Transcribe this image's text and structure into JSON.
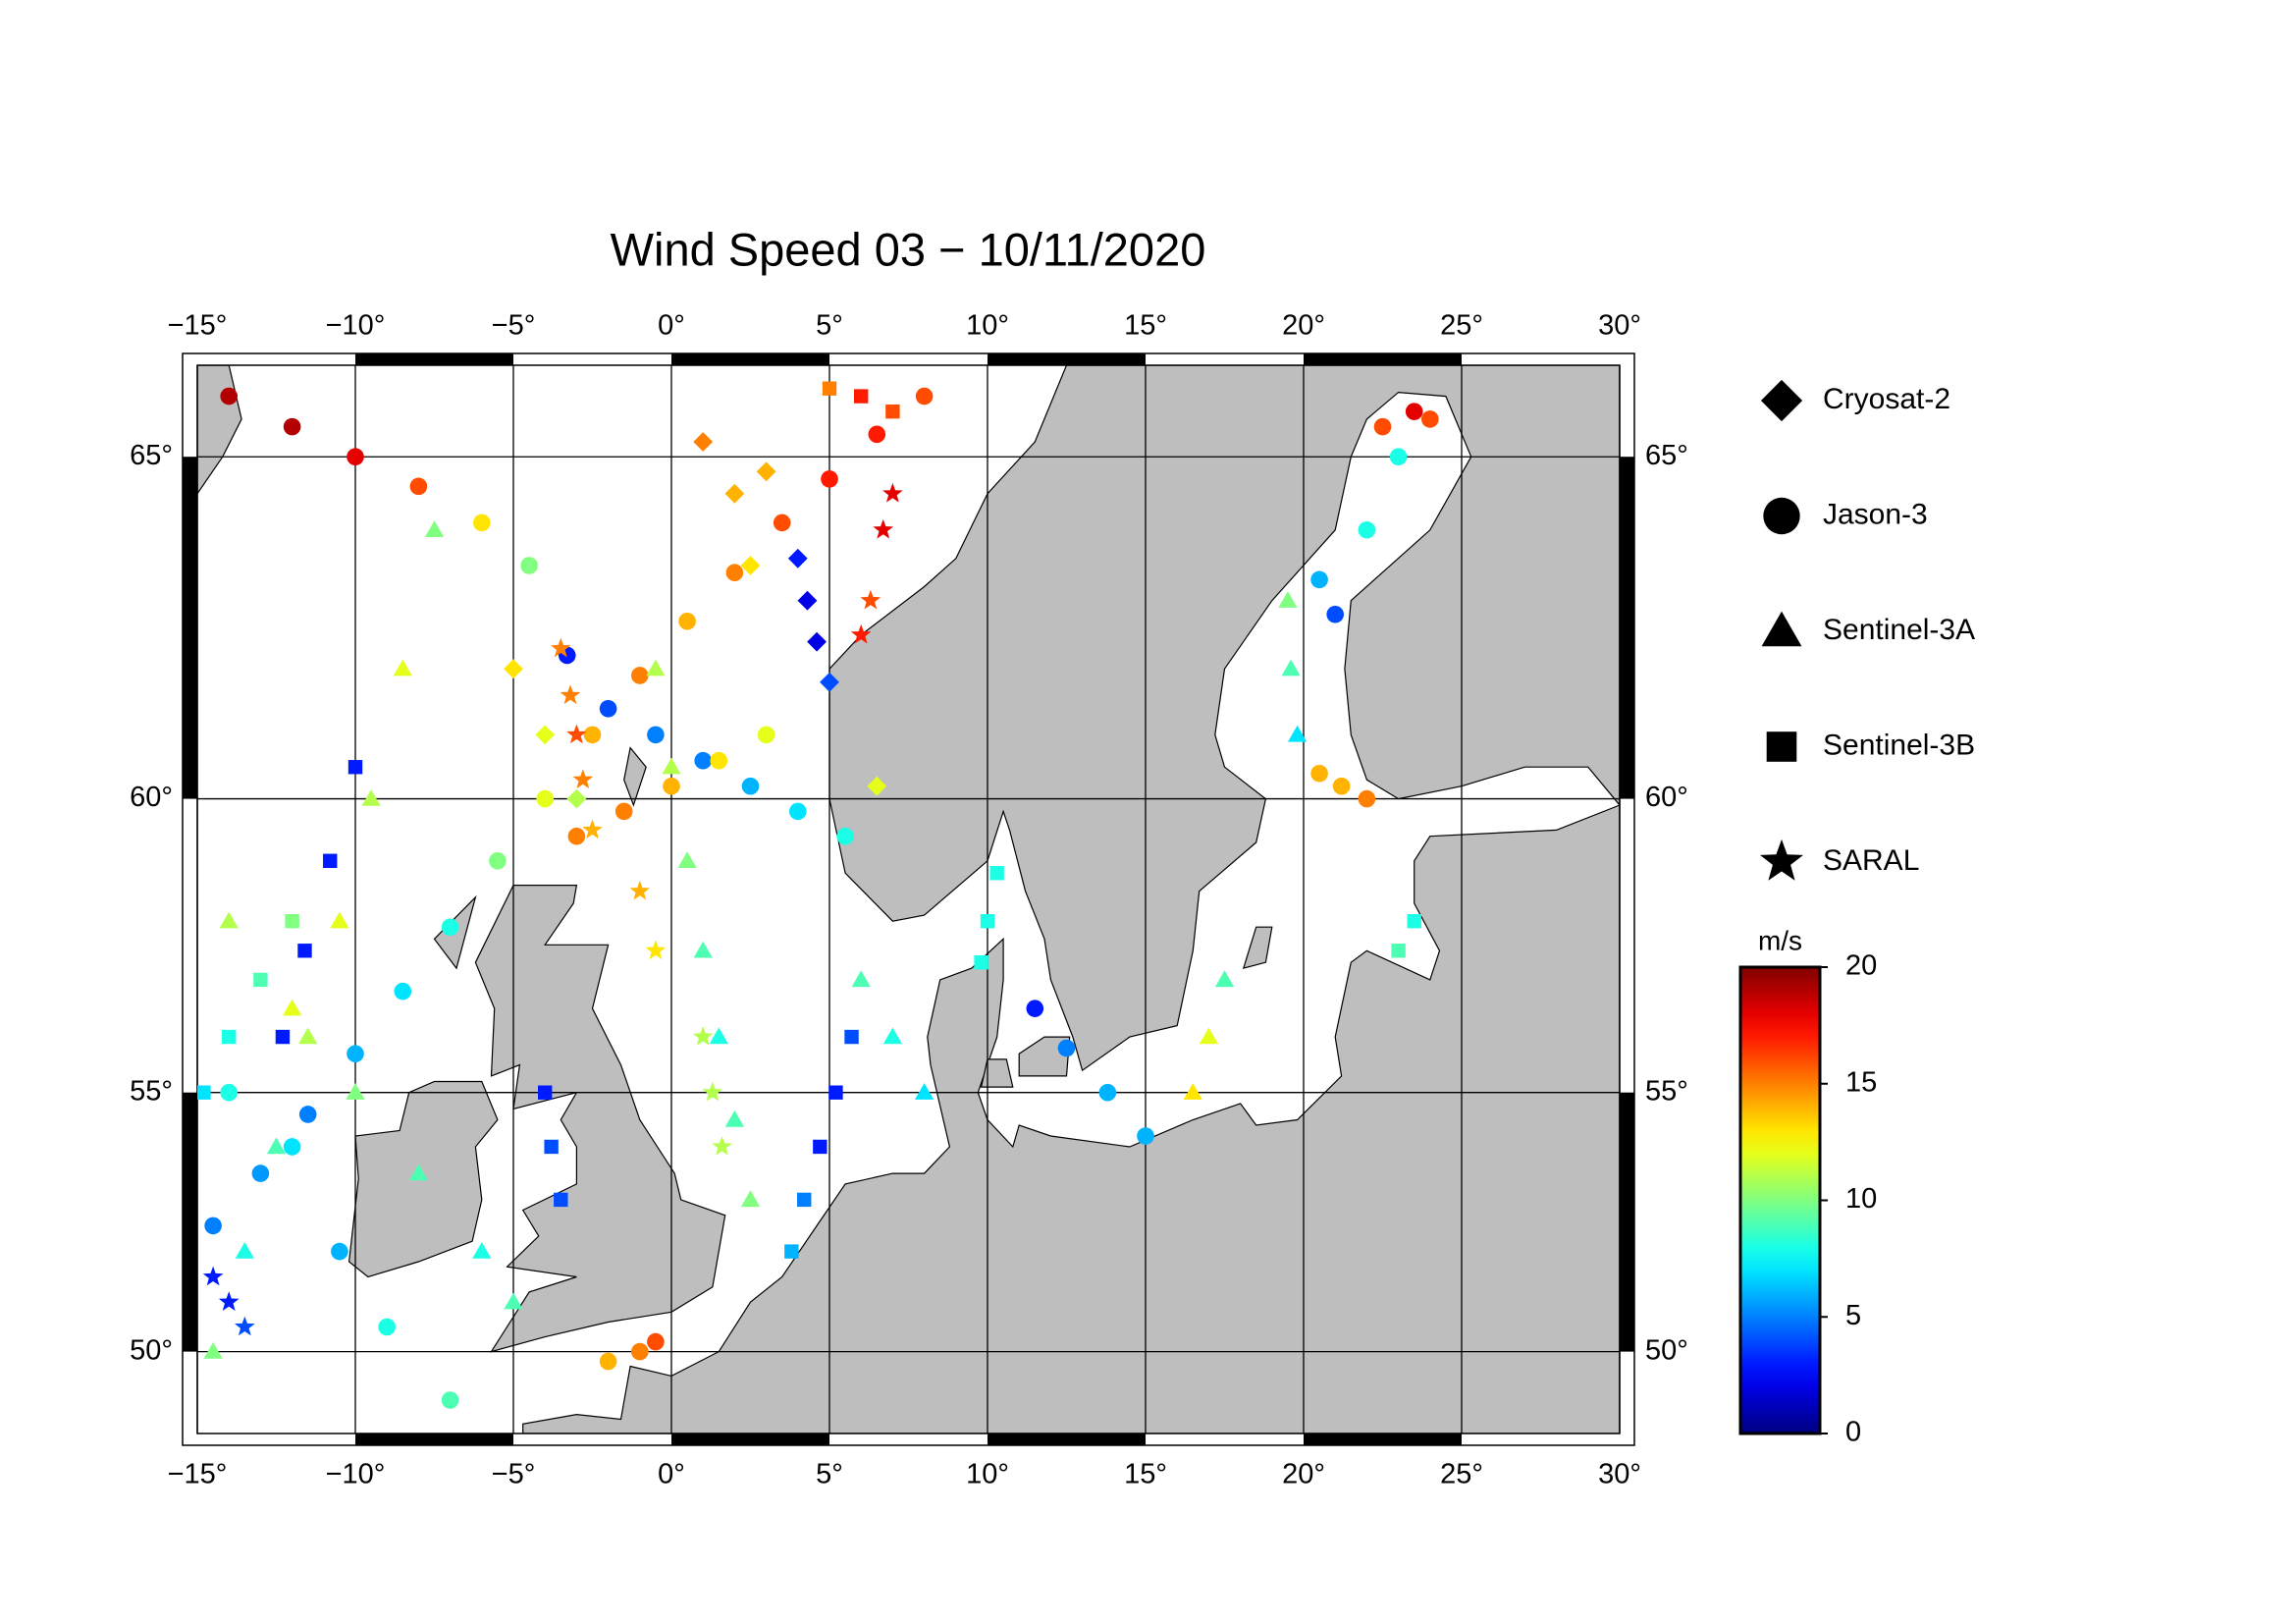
{
  "chart_data": {
    "type": "scatter",
    "title": "Wind Speed 03 − 10/11/2020",
    "projection": "mercator",
    "xlim": [
      -15,
      30
    ],
    "ylim": [
      48.3,
      66.2
    ],
    "xticks": [
      {
        "value": -15,
        "label": "−15°"
      },
      {
        "value": -10,
        "label": "−10°"
      },
      {
        "value": -5,
        "label": "−5°"
      },
      {
        "value": 0,
        "label": "0°"
      },
      {
        "value": 5,
        "label": "5°"
      },
      {
        "value": 10,
        "label": "10°"
      },
      {
        "value": 15,
        "label": "15°"
      },
      {
        "value": 20,
        "label": "20°"
      },
      {
        "value": 25,
        "label": "25°"
      },
      {
        "value": 30,
        "label": "30°"
      }
    ],
    "yticks": [
      {
        "value": 50,
        "label": "50°"
      },
      {
        "value": 55,
        "label": "55°"
      },
      {
        "value": 60,
        "label": "60°"
      },
      {
        "value": 65,
        "label": "65°"
      }
    ],
    "grid": true,
    "land_color": "#bebebe",
    "colormap": "jet",
    "clim": [
      0,
      20
    ],
    "cticks": [
      0,
      5,
      10,
      15,
      20
    ],
    "colorbar_label": "m/s",
    "series": [
      {
        "name": "Cryosat-2",
        "marker": "diamond",
        "x": [
          2,
          2.5,
          4,
          4.3,
          4.6,
          5,
          -5,
          -4,
          -3,
          6.5,
          1,
          3
        ],
        "y": [
          64.5,
          63.5,
          63.6,
          63,
          62.4,
          61.8,
          62,
          61,
          60,
          60.2,
          65.2,
          64.8
        ],
        "values": [
          14,
          13,
          3,
          2,
          2,
          4,
          13,
          12,
          11,
          12,
          15,
          14
        ]
      },
      {
        "name": "Jason-3",
        "marker": "circle",
        "x": [
          -14.5,
          -13,
          -11.5,
          -10,
          -8.5,
          -7,
          -5.5,
          -4,
          -2.5,
          -1,
          0.5,
          2,
          3.5,
          5,
          6.5,
          8,
          -14,
          -12,
          -10,
          -8,
          -6,
          -4.5,
          -3.3,
          -2,
          -0.5,
          1,
          2.5,
          4,
          5.5,
          -3,
          -1.5,
          0,
          1.5,
          3,
          15,
          13.8,
          12.5,
          11.5,
          22,
          21.2,
          20.5,
          23.5,
          24,
          22.5,
          23,
          22,
          20.5,
          21,
          -2,
          -1,
          -0.5,
          -14,
          -12,
          -10.5,
          -9,
          -7
        ],
        "y": [
          52.5,
          53.5,
          54.6,
          55.7,
          56.8,
          57.9,
          59,
          60,
          61,
          61.9,
          62.7,
          63.4,
          64.1,
          64.7,
          65.3,
          65.8,
          65.8,
          65.4,
          65,
          64.6,
          64.1,
          63.5,
          62.2,
          61.4,
          61,
          60.6,
          60.2,
          59.8,
          59.4,
          59.4,
          59.8,
          60.2,
          60.6,
          61,
          54.2,
          55,
          55.8,
          56.5,
          60,
          60.2,
          60.4,
          65.6,
          65.5,
          65.4,
          65,
          64,
          63.3,
          62.8,
          49.8,
          50,
          50.2,
          55,
          54,
          52,
          50.5,
          49
        ],
        "values": [
          5,
          5.5,
          5,
          6,
          7,
          8,
          10,
          12,
          14,
          15,
          14,
          15,
          16,
          17,
          17,
          16,
          19,
          19,
          18,
          16,
          13,
          10,
          3,
          4,
          5,
          5,
          6,
          7,
          8,
          15,
          15,
          14,
          13,
          12,
          6,
          6,
          5,
          3,
          15,
          14,
          14,
          18,
          16,
          16,
          8,
          8,
          6,
          4,
          14,
          15,
          16,
          8,
          7,
          6,
          8,
          9
        ]
      },
      {
        "name": "Sentinel-3A",
        "marker": "triangle",
        "x": [
          -0.5,
          0,
          0.5,
          1,
          1.5,
          2,
          2.5,
          6,
          7,
          8,
          -14.5,
          -13.5,
          -12.5,
          -11.5,
          -10.5,
          -9.5,
          -8.5,
          -7.5,
          -14,
          -12,
          -10,
          -8,
          -6,
          -5,
          17.5,
          17,
          16.5,
          19.5,
          19.6,
          19.8
        ],
        "y": [
          62,
          60.5,
          59,
          57.5,
          56,
          54.5,
          53,
          57,
          56,
          55,
          50,
          52,
          54,
          56,
          58,
          60,
          62,
          64,
          58,
          56.5,
          55,
          53.5,
          52,
          51,
          57,
          56,
          55,
          63,
          62,
          61
        ],
        "values": [
          11,
          11,
          10,
          9,
          8,
          9,
          10,
          9,
          8,
          7,
          10,
          8,
          9,
          11,
          12,
          11,
          12,
          10,
          11,
          12,
          10,
          9,
          8,
          9,
          9,
          12,
          13,
          10,
          9,
          7
        ]
      },
      {
        "name": "Sentinel-3B",
        "marker": "square",
        "x": [
          -10,
          -10.8,
          -11.6,
          -12.3,
          -4,
          -3.8,
          -3.5,
          5.7,
          5.2,
          4.7,
          4.2,
          3.8,
          6,
          7,
          5,
          -14.8,
          -14,
          -13,
          -12,
          23,
          23.5,
          10.3,
          10,
          9.8
        ],
        "y": [
          60.5,
          59,
          57.5,
          56,
          55,
          54,
          53,
          56,
          55,
          54,
          53,
          52,
          65.8,
          65.6,
          65.9,
          55,
          56,
          57,
          58,
          57.5,
          58,
          58.8,
          58,
          57.3
        ],
        "values": [
          3,
          3,
          3,
          3,
          3,
          4,
          4,
          4,
          3,
          3,
          5,
          6,
          17,
          16,
          15,
          7,
          8,
          9,
          10,
          9,
          8,
          8,
          8,
          8
        ]
      },
      {
        "name": "SARAL",
        "marker": "star",
        "x": [
          7,
          6.7,
          6.3,
          6,
          -3.5,
          -3.2,
          -3,
          -2.8,
          -2.5,
          1,
          1.3,
          1.6,
          -14.5,
          -14,
          -13.5,
          -1,
          -0.5
        ],
        "y": [
          64.5,
          64,
          63,
          62.5,
          62.3,
          61.6,
          61,
          60.3,
          59.5,
          56,
          55,
          54,
          51.5,
          51,
          50.5,
          58.5,
          57.5
        ],
        "values": [
          18,
          18,
          16,
          17,
          15,
          15,
          16,
          15,
          14,
          11,
          11,
          11,
          3,
          3,
          4,
          14,
          13
        ]
      }
    ]
  }
}
